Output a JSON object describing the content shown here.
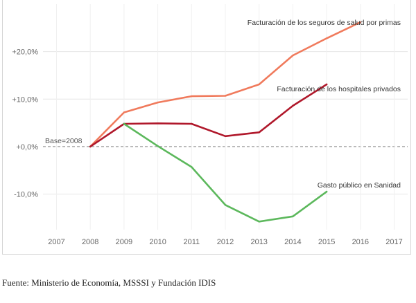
{
  "chart_data": {
    "type": "line",
    "x": [
      2007,
      2008,
      2009,
      2010,
      2011,
      2012,
      2013,
      2014,
      2015,
      2016,
      2017
    ],
    "x_tick_labels": [
      "2007",
      "2008",
      "2009",
      "2010",
      "2011",
      "2012",
      "2013",
      "2014",
      "2015",
      "2016",
      "2017"
    ],
    "y_ticks": [
      -10,
      0,
      10,
      20
    ],
    "y_tick_labels": [
      "-10,0%",
      "+0,0%",
      "+10,0%",
      "+20,0%"
    ],
    "ylim": [
      -17.5,
      30
    ],
    "xlim": [
      2006.6,
      2017.4
    ],
    "grid": true,
    "baseline": {
      "y": 0,
      "label": "Base=2008"
    },
    "series": [
      {
        "name": "Facturación de los seguros de salud por primas",
        "color": "#f07a5c",
        "x": [
          2008,
          2009,
          2010,
          2011,
          2012,
          2013,
          2014,
          2015,
          2016
        ],
        "y": [
          0,
          7.2,
          9.3,
          10.6,
          10.7,
          13.1,
          19.2,
          22.8,
          26.2
        ]
      },
      {
        "name": "Facturación de los hospitales privados",
        "color": "#b0182b",
        "x": [
          2008,
          2009,
          2010,
          2011,
          2012,
          2013,
          2014,
          2015
        ],
        "y": [
          0,
          4.8,
          4.9,
          4.8,
          2.2,
          3.0,
          8.6,
          13.1
        ]
      },
      {
        "name": "Gasto público en Sanidad",
        "color": "#5cb85c",
        "x": [
          2009,
          2010,
          2011,
          2012,
          2013,
          2014,
          2015
        ],
        "y": [
          4.8,
          0.1,
          -4.3,
          -12.3,
          -15.8,
          -14.7,
          -9.5
        ]
      }
    ]
  },
  "source_note": "Fuente: Ministerio de Economía, MSSSI y Fundación IDIS"
}
